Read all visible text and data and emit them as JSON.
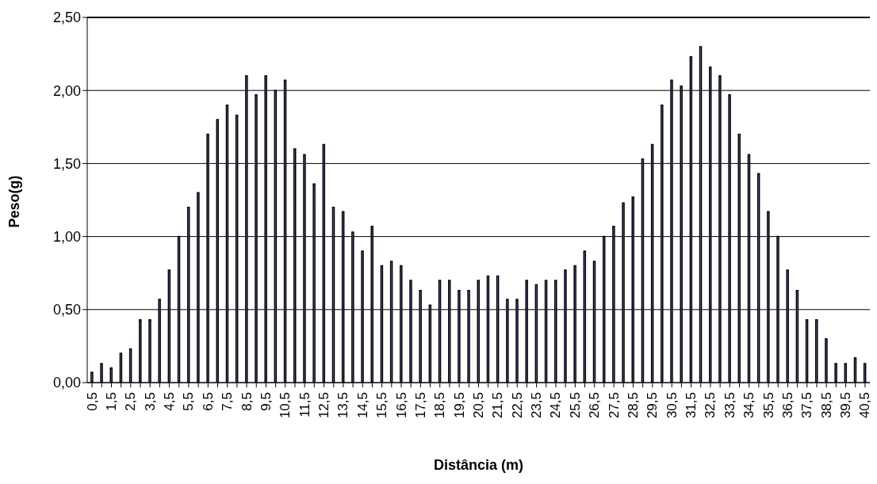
{
  "chart_data": {
    "type": "bar",
    "xlabel": "Distância (m)",
    "ylabel": "Peso(g)",
    "categories": [
      "0,5",
      null,
      "1,5",
      null,
      "2,5",
      null,
      "3,5",
      null,
      "4,5",
      null,
      "5,5",
      null,
      "6,5",
      null,
      "7,5",
      null,
      "8,5",
      null,
      "9,5",
      null,
      "10,5",
      null,
      "11,5",
      null,
      "12,5",
      null,
      "13,5",
      null,
      "14,5",
      null,
      "15,5",
      null,
      "16,5",
      null,
      "17,5",
      null,
      "18,5",
      null,
      "19,5",
      null,
      "20,5",
      null,
      "21,5",
      null,
      "22,5",
      null,
      "23,5",
      null,
      "24,5",
      null,
      "25,5",
      null,
      "26,5",
      null,
      "27,5",
      null,
      "28,5",
      null,
      "29,5",
      null,
      "30,5",
      null,
      "31,5",
      null,
      "32,5",
      null,
      "33,5",
      null,
      "34,5",
      null,
      "35,5",
      null,
      "36,5",
      null,
      "37,5",
      null,
      "38,5",
      null,
      "39,5",
      null,
      "40,5"
    ],
    "values": [
      0.07,
      0.13,
      0.1,
      0.2,
      0.23,
      0.43,
      0.43,
      0.57,
      0.77,
      1.0,
      1.2,
      1.3,
      1.7,
      1.8,
      1.9,
      1.83,
      2.1,
      1.97,
      2.1,
      2.0,
      2.07,
      1.6,
      1.56,
      1.36,
      1.63,
      1.2,
      1.17,
      1.03,
      0.9,
      1.07,
      0.8,
      0.83,
      0.8,
      0.7,
      0.63,
      0.53,
      0.7,
      0.7,
      0.63,
      0.63,
      0.7,
      0.73,
      0.73,
      0.57,
      0.57,
      0.7,
      0.67,
      0.7,
      0.7,
      0.77,
      0.8,
      0.9,
      0.83,
      1.0,
      1.07,
      1.23,
      1.27,
      1.53,
      1.63,
      1.9,
      2.07,
      2.03,
      2.23,
      2.3,
      2.16,
      2.1,
      1.97,
      1.7,
      1.56,
      1.43,
      1.17,
      1.0,
      0.77,
      0.63,
      0.43,
      0.43,
      0.3,
      0.13,
      0.13,
      0.17,
      0.13
    ],
    "color": "#9999ff",
    "ylim": [
      0,
      2.5
    ],
    "yticks": [
      {
        "value": 0,
        "label": "0,00"
      },
      {
        "value": 0.5,
        "label": "0,50"
      },
      {
        "value": 1,
        "label": "1,00"
      },
      {
        "value": 1.5,
        "label": "1,50"
      },
      {
        "value": 2,
        "label": "2,00"
      },
      {
        "value": 2.5,
        "label": "2,50"
      }
    ],
    "grid": "y",
    "legend": false
  }
}
